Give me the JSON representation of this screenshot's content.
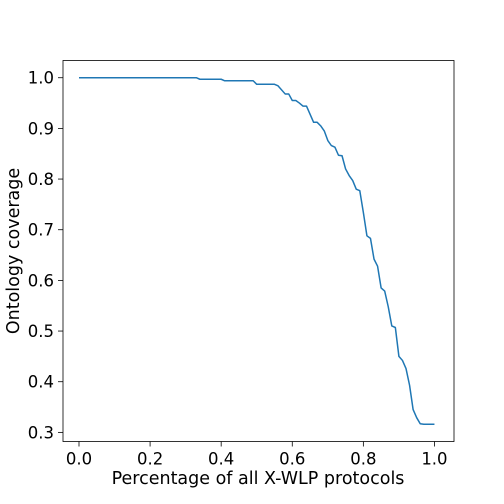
{
  "chart_data": {
    "type": "line",
    "title": "",
    "xlabel": "Percentage of all X-WLP protocols",
    "ylabel": "Ontology coverage",
    "xlim": [
      -0.045,
      1.055
    ],
    "ylim": [
      0.282,
      1.034
    ],
    "xticks": [
      0.0,
      0.2,
      0.4,
      0.6,
      0.8,
      1.0
    ],
    "xtick_labels": [
      "0.0",
      "0.2",
      "0.4",
      "0.6",
      "0.8",
      "1.0"
    ],
    "yticks": [
      0.3,
      0.4,
      0.5,
      0.6,
      0.7,
      0.8,
      0.9,
      1.0
    ],
    "ytick_labels": [
      "0.3",
      "0.4",
      "0.5",
      "0.6",
      "0.7",
      "0.8",
      "0.9",
      "1.0"
    ],
    "grid": false,
    "legend": "none",
    "series": [
      {
        "color": "#1f77b4",
        "x": [
          0.0,
          0.33,
          0.34,
          0.4,
          0.41,
          0.49,
          0.5,
          0.55,
          0.56,
          0.58,
          0.59,
          0.6,
          0.61,
          0.62,
          0.63,
          0.64,
          0.66,
          0.67,
          0.68,
          0.69,
          0.7,
          0.71,
          0.72,
          0.73,
          0.74,
          0.75,
          0.76,
          0.77,
          0.78,
          0.79,
          0.8,
          0.81,
          0.82,
          0.83,
          0.84,
          0.85,
          0.86,
          0.87,
          0.88,
          0.89,
          0.9,
          0.91,
          0.92,
          0.93,
          0.94,
          0.95,
          0.96,
          0.97,
          0.98,
          1.0
        ],
        "y": [
          1.0,
          1.0,
          0.997,
          0.997,
          0.994,
          0.994,
          0.987,
          0.987,
          0.984,
          0.968,
          0.968,
          0.955,
          0.955,
          0.95,
          0.944,
          0.944,
          0.912,
          0.912,
          0.905,
          0.895,
          0.876,
          0.866,
          0.863,
          0.847,
          0.846,
          0.82,
          0.807,
          0.797,
          0.78,
          0.777,
          0.734,
          0.688,
          0.683,
          0.642,
          0.628,
          0.585,
          0.579,
          0.548,
          0.51,
          0.507,
          0.45,
          0.442,
          0.426,
          0.393,
          0.345,
          0.329,
          0.317,
          0.316,
          0.316,
          0.316
        ]
      }
    ]
  }
}
